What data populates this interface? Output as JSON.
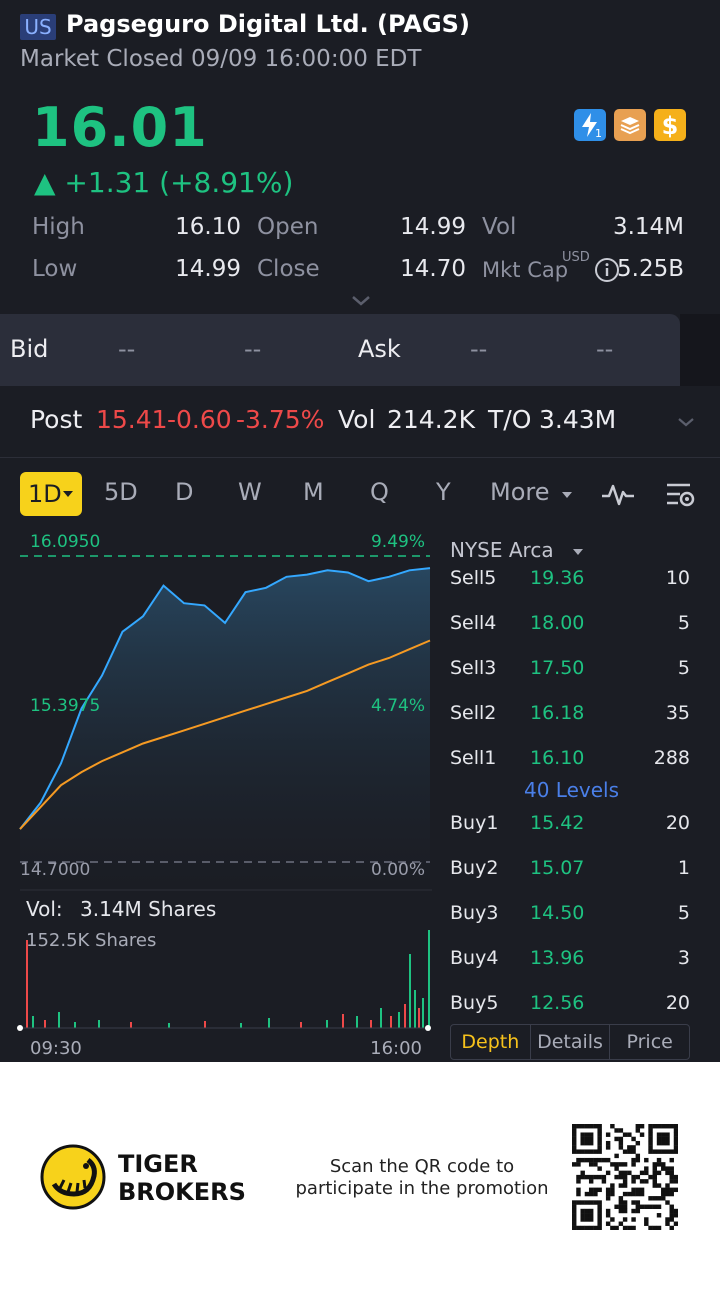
{
  "header": {
    "market": "US",
    "title": "Pagseguro Digital Ltd. (PAGS)",
    "status": "Market Closed 09/09 16:00:00 EDT"
  },
  "quote": {
    "price": "16.01",
    "change": "▲ +1.31 (+8.91%)",
    "stats": {
      "high_label": "High",
      "high": "16.10",
      "low_label": "Low",
      "low": "14.99",
      "open_label": "Open",
      "open": "14.99",
      "close_label": "Close",
      "close": "14.70",
      "vol_label": "Vol",
      "vol": "3.14M",
      "mktcap_label": "Mkt Cap",
      "mktcap_currency": "USD",
      "mktcap": "5.25B"
    }
  },
  "bidask": {
    "bid_label": "Bid",
    "bid_price": "--",
    "bid_size": "--",
    "ask_label": "Ask",
    "ask_price": "--",
    "ask_size": "--"
  },
  "post": {
    "label": "Post",
    "price": "15.41",
    "change": "-0.60",
    "pct": "-3.75%",
    "vol_label": "Vol",
    "vol": "214.2K",
    "to_label": "T/O",
    "to": "3.43M"
  },
  "tabs": {
    "active": "1D",
    "items": [
      "5D",
      "D",
      "W",
      "M",
      "Q",
      "Y"
    ],
    "more": "More"
  },
  "chart_data": {
    "type": "line",
    "y_labels_left": [
      "16.0950",
      "15.3975",
      "14.7000"
    ],
    "y_labels_right": [
      "9.49%",
      "4.74%",
      "0.00%"
    ],
    "ylim": [
      14.7,
      16.095
    ],
    "x_labels": [
      "09:30",
      "16:00"
    ],
    "series": [
      {
        "name": "",
        "color": "#34a8ff",
        "values": [
          14.85,
          14.97,
          15.15,
          15.4,
          15.55,
          15.75,
          15.82,
          15.96,
          15.88,
          15.87,
          15.79,
          15.93,
          15.95,
          16.0,
          16.01,
          16.03,
          16.02,
          15.98,
          16.0,
          16.03,
          16.04
        ]
      },
      {
        "name": "",
        "color": "#f59a23",
        "values": [
          14.85,
          14.95,
          15.05,
          15.11,
          15.16,
          15.2,
          15.24,
          15.27,
          15.3,
          15.33,
          15.36,
          15.39,
          15.42,
          15.45,
          15.48,
          15.52,
          15.56,
          15.6,
          15.63,
          15.67,
          15.71
        ]
      }
    ],
    "volume": {
      "label": "Vol:",
      "total": "3.14M Shares",
      "axis_max": "152.5K Shares"
    }
  },
  "orderbook": {
    "exchange": "NYSE Arca",
    "sells": [
      {
        "name": "Sell5",
        "price": "19.36",
        "qty": "10"
      },
      {
        "name": "Sell4",
        "price": "18.00",
        "qty": "5"
      },
      {
        "name": "Sell3",
        "price": "17.50",
        "qty": "5"
      },
      {
        "name": "Sell2",
        "price": "16.18",
        "qty": "35"
      },
      {
        "name": "Sell1",
        "price": "16.10",
        "qty": "288"
      }
    ],
    "levels": "40 Levels",
    "buys": [
      {
        "name": "Buy1",
        "price": "15.42",
        "qty": "20"
      },
      {
        "name": "Buy2",
        "price": "15.07",
        "qty": "1"
      },
      {
        "name": "Buy3",
        "price": "14.50",
        "qty": "5"
      },
      {
        "name": "Buy4",
        "price": "13.96",
        "qty": "3"
      },
      {
        "name": "Buy5",
        "price": "12.56",
        "qty": "20"
      }
    ],
    "tabs": [
      "Depth",
      "Details",
      "Price"
    ]
  },
  "footer": {
    "brand_line1": "TIGER",
    "brand_line2": "BROKERS",
    "promo": "Scan the QR code to participate in the promotion"
  },
  "colors": {
    "up": "#1ec281",
    "down": "#ee4949",
    "accent": "#f7d21b",
    "background": "#1b1d24"
  }
}
